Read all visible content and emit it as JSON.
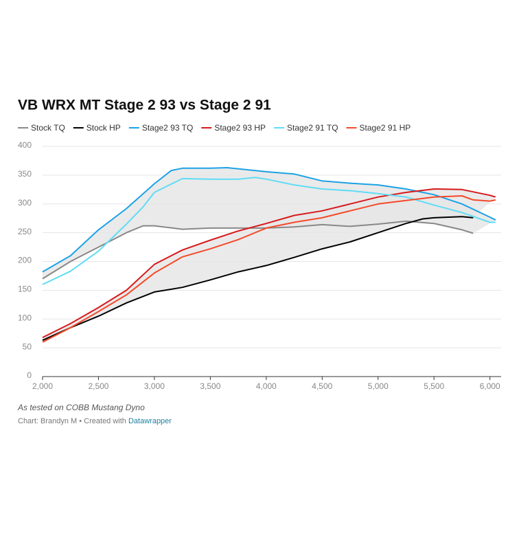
{
  "chart_data": {
    "type": "line",
    "title": "VB WRX MT Stage 2 93 vs Stage 2 91",
    "note": "As tested on COBB Mustang Dyno",
    "source": "Chart: Brandyn M • Created with",
    "credit_link": "Datawrapper",
    "xlim": [
      2000,
      6100
    ],
    "ylim": [
      0,
      400
    ],
    "xticks": [
      {
        "value": 2000,
        "label": "2,000"
      },
      {
        "value": 2500,
        "label": "2,500"
      },
      {
        "value": 3000,
        "label": "3,000"
      },
      {
        "value": 3500,
        "label": "3,500"
      },
      {
        "value": 4000,
        "label": "4,000"
      },
      {
        "value": 4500,
        "label": "4,500"
      },
      {
        "value": 5000,
        "label": "5,000"
      },
      {
        "value": 5500,
        "label": "5,500"
      },
      {
        "value": 6000,
        "label": "6,000"
      }
    ],
    "yticks": [
      0,
      50,
      100,
      150,
      200,
      250,
      300,
      350,
      400
    ],
    "grid": true,
    "series": [
      {
        "name": "Stock TQ",
        "color": "#888888",
        "x": [
          2000,
          2250,
          2500,
          2750,
          2900,
          3000,
          3250,
          3500,
          3750,
          4000,
          4250,
          4500,
          4750,
          5000,
          5250,
          5500,
          5750,
          5850
        ],
        "values": [
          170,
          200,
          225,
          250,
          262,
          262,
          256,
          258,
          258,
          258,
          260,
          264,
          261,
          265,
          270,
          266,
          255,
          249
        ]
      },
      {
        "name": "Stock HP",
        "color": "#000000",
        "x": [
          2000,
          2250,
          2500,
          2750,
          3000,
          3250,
          3500,
          3750,
          4000,
          4250,
          4500,
          4750,
          5000,
          5250,
          5400,
          5500,
          5750,
          5850
        ],
        "values": [
          63,
          85,
          105,
          128,
          147,
          155,
          168,
          182,
          193,
          207,
          222,
          234,
          250,
          266,
          274,
          276,
          278,
          276
        ]
      },
      {
        "name": "Stage2 93 TQ",
        "color": "#1ba2e6",
        "x": [
          2000,
          2250,
          2500,
          2750,
          3000,
          3150,
          3250,
          3500,
          3650,
          4000,
          4250,
          4500,
          4750,
          5000,
          5250,
          5500,
          5750,
          6000,
          6050
        ],
        "values": [
          182,
          210,
          255,
          292,
          335,
          358,
          362,
          362,
          363,
          356,
          352,
          340,
          336,
          333,
          326,
          316,
          300,
          277,
          272
        ]
      },
      {
        "name": "Stage2 93 HP",
        "color": "#d7191c",
        "x": [
          2000,
          2250,
          2500,
          2750,
          3000,
          3250,
          3500,
          3750,
          4000,
          4250,
          4500,
          4750,
          5000,
          5250,
          5500,
          5750,
          6000,
          6050
        ],
        "values": [
          68,
          92,
          120,
          150,
          195,
          220,
          237,
          253,
          266,
          280,
          288,
          300,
          312,
          320,
          326,
          325,
          315,
          312
        ]
      },
      {
        "name": "Stage2 91 TQ",
        "color": "#5fdcf5",
        "x": [
          2000,
          2250,
          2500,
          2750,
          2900,
          3000,
          3250,
          3500,
          3750,
          3900,
          4000,
          4250,
          4500,
          4750,
          5000,
          5250,
          5500,
          5750,
          6000,
          6050
        ],
        "values": [
          160,
          183,
          218,
          265,
          295,
          320,
          344,
          343,
          343,
          346,
          343,
          333,
          326,
          323,
          318,
          312,
          298,
          285,
          268,
          268
        ]
      },
      {
        "name": "Stage2 91 HP",
        "color": "#f4492a",
        "x": [
          2000,
          2250,
          2500,
          2750,
          3000,
          3250,
          3500,
          3750,
          4000,
          4250,
          4500,
          4750,
          5000,
          5250,
          5500,
          5750,
          5850,
          6000,
          6050
        ],
        "values": [
          60,
          85,
          113,
          142,
          180,
          208,
          222,
          238,
          258,
          268,
          276,
          288,
          300,
          306,
          312,
          314,
          307,
          305,
          307
        ]
      }
    ]
  }
}
